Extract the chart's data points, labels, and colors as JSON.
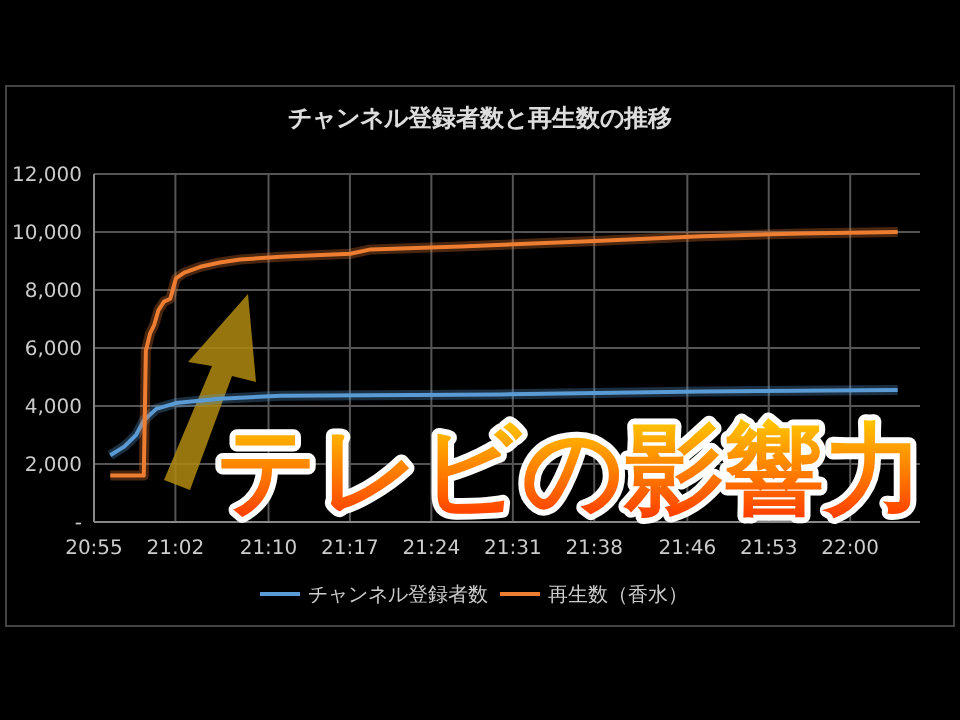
{
  "chart_data": {
    "type": "line",
    "title": "チャンネル登録者数と再生数の推移",
    "xlim": [
      20.9167,
      22.1
    ],
    "xticks": [
      {
        "value": 20.9167,
        "label": "20:55"
      },
      {
        "value": 21.0333,
        "label": "21:02"
      },
      {
        "value": 21.1667,
        "label": "21:10"
      },
      {
        "value": 21.2833,
        "label": "21:17"
      },
      {
        "value": 21.4,
        "label": "21:24"
      },
      {
        "value": 21.5167,
        "label": "21:31"
      },
      {
        "value": 21.6333,
        "label": "21:38"
      },
      {
        "value": 21.7667,
        "label": "21:46"
      },
      {
        "value": 21.8833,
        "label": "21:53"
      },
      {
        "value": 22.0,
        "label": "22:00"
      }
    ],
    "ylim": [
      0,
      12000
    ],
    "yticks": [
      {
        "value": 0,
        "label": "-"
      },
      {
        "value": 2000,
        "label": "2,000"
      },
      {
        "value": 4000,
        "label": "4,000"
      },
      {
        "value": 6000,
        "label": "6,000"
      },
      {
        "value": 8000,
        "label": "8,000"
      },
      {
        "value": 10000,
        "label": "10,000"
      },
      {
        "value": 12000,
        "label": "12,000"
      }
    ],
    "grid": true,
    "legend": "bottom",
    "marker": "none",
    "line_style": "solid",
    "series": [
      {
        "name": "チャンネル登録者数",
        "color": "#5b9bd5",
        "x": [
          20.94,
          20.96,
          20.977,
          20.988,
          21.006,
          21.034,
          21.097,
          21.184,
          21.5,
          21.787,
          22.068
        ],
        "values": [
          2300,
          2600,
          3000,
          3500,
          3900,
          4100,
          4250,
          4350,
          4400,
          4500,
          4550
        ]
      },
      {
        "name": "再生数（香水）",
        "color": "#ed7d31",
        "x": [
          20.94,
          20.988,
          20.991,
          20.997,
          21.003,
          21.009,
          21.017,
          21.026,
          21.034,
          21.046,
          21.069,
          21.097,
          21.126,
          21.184,
          21.284,
          21.313,
          21.442,
          21.643,
          21.787,
          21.93,
          22.068
        ],
        "values": [
          1600,
          1600,
          5900,
          6500,
          6800,
          7300,
          7600,
          7700,
          8400,
          8600,
          8800,
          8950,
          9050,
          9150,
          9250,
          9400,
          9500,
          9700,
          9850,
          9950,
          10000
        ]
      }
    ],
    "annotations": [
      "テレビの影響力"
    ]
  }
}
